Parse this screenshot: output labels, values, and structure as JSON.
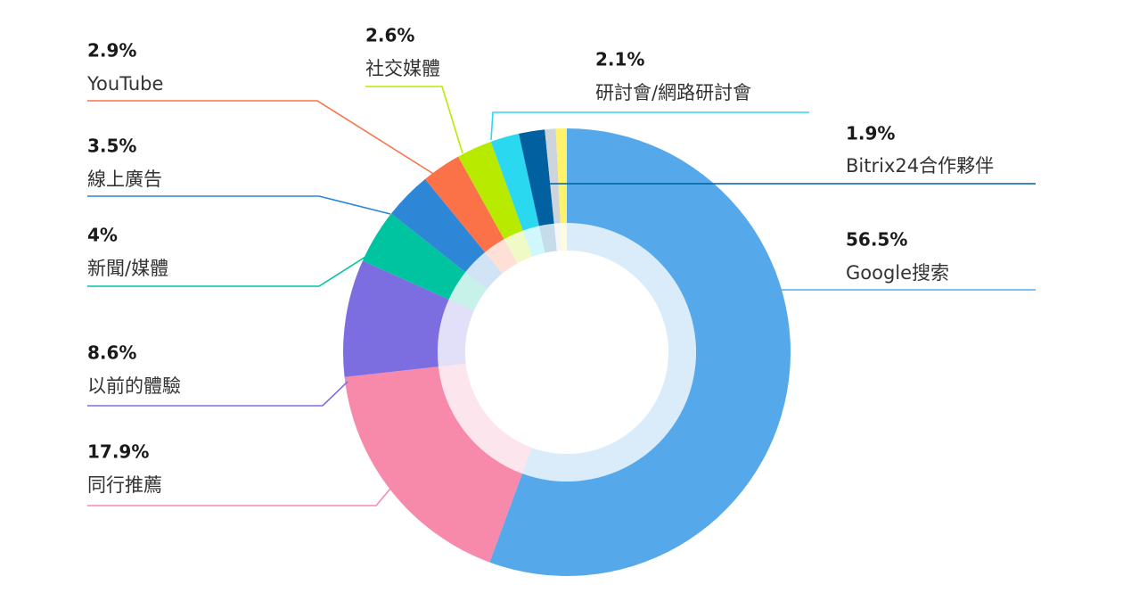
{
  "chart_data": {
    "type": "pie",
    "title": "",
    "slices": [
      {
        "label": "Google搜索",
        "value": 56.5,
        "value_label": "56.5%",
        "color": "#55a9ea"
      },
      {
        "label": "同行推薦",
        "value": 17.9,
        "value_label": "17.9%",
        "color": "#f78aab"
      },
      {
        "label": "以前的體驗",
        "value": 8.6,
        "value_label": "8.6%",
        "color": "#7c6ee0"
      },
      {
        "label": "新聞/媒體",
        "value": 4,
        "value_label": "4%",
        "color": "#00c4a0"
      },
      {
        "label": "線上廣告",
        "value": 3.5,
        "value_label": "3.5%",
        "color": "#2e86d6"
      },
      {
        "label": "YouTube",
        "value": 2.9,
        "value_label": "2.9%",
        "color": "#fb7249"
      },
      {
        "label": "社交媒體",
        "value": 2.6,
        "value_label": "2.6%",
        "color": "#b8ea00"
      },
      {
        "label": "研討會/網路研討會",
        "value": 2.1,
        "value_label": "2.1%",
        "color": "#2ad9ef"
      },
      {
        "label": "Bitrix24合作夥伴",
        "value": 1.9,
        "value_label": "1.9%",
        "color": "#0060a0"
      },
      {
        "label": "",
        "value": 0.8,
        "value_label": "",
        "color": "#cdd4dc"
      },
      {
        "label": "",
        "value": 0.8,
        "value_label": "",
        "color": "#fff26b"
      }
    ],
    "legend": "callout-labels",
    "grid": false
  }
}
